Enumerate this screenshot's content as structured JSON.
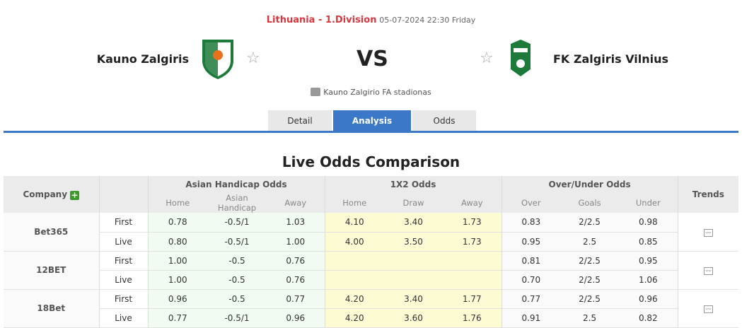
{
  "header": {
    "league": "Lithuania - 1.Division",
    "datetime": "05-07-2024 22:30 Friday",
    "home": "Kauno Zalgiris",
    "away": "FK Zalgiris Vilnius",
    "vs": "VS",
    "venue": "Kauno Zalgirio FA stadionas"
  },
  "tabs": [
    {
      "label": "Detail"
    },
    {
      "label": "Analysis",
      "active": true
    },
    {
      "label": "Odds"
    }
  ],
  "title": "Live Odds Comparison",
  "table": {
    "headers": {
      "company": "Company",
      "ah": "Asian Handicap Odds",
      "x12": "1X2 Odds",
      "ou": "Over/Under Odds",
      "trends": "Trends",
      "ah_sub": [
        "Home",
        "Asian Handicap",
        "Away"
      ],
      "x12_sub": [
        "Home",
        "Draw",
        "Away"
      ],
      "ou_sub": [
        "Over",
        "Goals",
        "Under"
      ]
    },
    "companies": [
      {
        "name": "Bet365",
        "rows": [
          {
            "type": "First",
            "ah": [
              "0.78",
              "-0.5/1",
              "1.03"
            ],
            "x12": [
              "4.10",
              "3.40",
              "1.73"
            ],
            "ou": [
              "0.83",
              "2/2.5",
              "0.98"
            ]
          },
          {
            "type": "Live",
            "ah": [
              "0.80",
              "-0.5/1",
              "1.00"
            ],
            "x12": [
              "4.00",
              "3.50",
              "1.73"
            ],
            "ou": [
              "0.95",
              "2.5",
              "0.85"
            ]
          }
        ]
      },
      {
        "name": "12BET",
        "rows": [
          {
            "type": "First",
            "ah": [
              "1.00",
              "-0.5",
              "0.76"
            ],
            "x12": [
              "",
              "",
              ""
            ],
            "ou": [
              "0.81",
              "2/2.5",
              "0.95"
            ]
          },
          {
            "type": "Live",
            "ah": [
              "1.00",
              "-0.5",
              "0.76"
            ],
            "x12": [
              "",
              "",
              ""
            ],
            "ou": [
              "0.70",
              "2/2.5",
              "1.06"
            ]
          }
        ]
      },
      {
        "name": "18Bet",
        "rows": [
          {
            "type": "First",
            "ah": [
              "0.96",
              "-0.5",
              "0.77"
            ],
            "x12": [
              "4.20",
              "3.40",
              "1.77"
            ],
            "ou": [
              "0.77",
              "2/2.5",
              "0.96"
            ]
          },
          {
            "type": "Live",
            "ah": [
              "0.77",
              "-0.5/1",
              "0.96"
            ],
            "x12": [
              "4.20",
              "3.60",
              "1.76"
            ],
            "ou": [
              "0.91",
              "2.5",
              "0.82"
            ]
          }
        ]
      }
    ]
  },
  "colors": {
    "accent": "#3c78c8",
    "league": "#d9363e",
    "ah_bg": "#f1fbf1",
    "x12_bg": "#fdfbd4"
  }
}
